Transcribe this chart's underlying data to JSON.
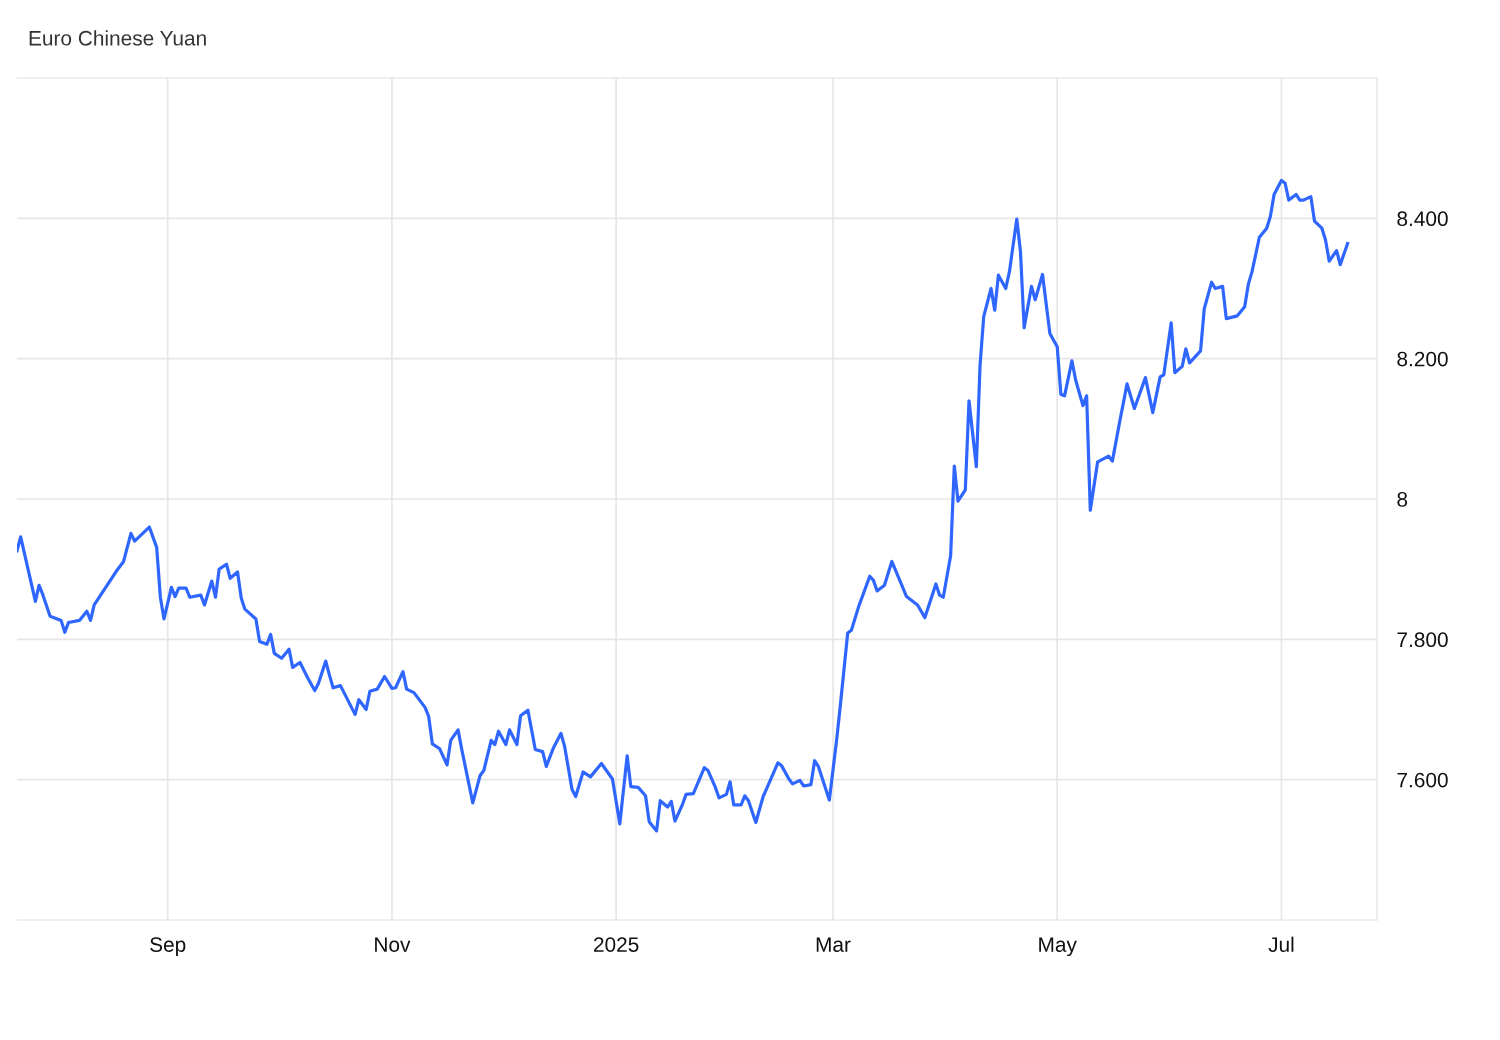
{
  "chart_data": {
    "type": "line",
    "title": "Euro Chinese Yuan",
    "x": [
      "2024-07-22",
      "2024-07-23",
      "2024-07-27",
      "2024-07-28",
      "2024-07-29",
      "2024-07-31",
      "2024-08-03",
      "2024-08-04",
      "2024-08-05",
      "2024-08-08",
      "2024-08-10",
      "2024-08-11",
      "2024-08-12",
      "2024-08-18",
      "2024-08-20",
      "2024-08-22",
      "2024-08-23",
      "2024-08-25",
      "2024-08-27",
      "2024-08-29",
      "2024-08-30",
      "2024-08-31",
      "2024-09-02",
      "2024-09-03",
      "2024-09-04",
      "2024-09-06",
      "2024-09-07",
      "2024-09-10",
      "2024-09-11",
      "2024-09-13",
      "2024-09-14",
      "2024-09-15",
      "2024-09-17",
      "2024-09-18",
      "2024-09-20",
      "2024-09-21",
      "2024-09-22",
      "2024-09-25",
      "2024-09-26",
      "2024-09-28",
      "2024-09-29",
      "2024-09-30",
      "2024-10-02",
      "2024-10-04",
      "2024-10-05",
      "2024-10-07",
      "2024-10-09",
      "2024-10-11",
      "2024-10-12",
      "2024-10-14",
      "2024-10-15",
      "2024-10-16",
      "2024-10-18",
      "2024-10-21",
      "2024-10-22",
      "2024-10-23",
      "2024-10-25",
      "2024-10-26",
      "2024-10-28",
      "2024-10-30",
      "2024-11-01",
      "2024-11-02",
      "2024-11-04",
      "2024-11-05",
      "2024-11-07",
      "2024-11-10",
      "2024-11-11",
      "2024-11-12",
      "2024-11-14",
      "2024-11-16",
      "2024-11-17",
      "2024-11-19",
      "2024-11-20",
      "2024-11-23",
      "2024-11-25",
      "2024-11-26",
      "2024-11-28",
      "2024-11-29",
      "2024-11-30",
      "2024-12-02",
      "2024-12-03",
      "2024-12-05",
      "2024-12-06",
      "2024-12-08",
      "2024-12-10",
      "2024-12-12",
      "2024-12-13",
      "2024-12-15",
      "2024-12-17",
      "2024-12-18",
      "2024-12-20",
      "2024-12-21",
      "2024-12-23",
      "2024-12-25",
      "2024-12-28",
      "2024-12-31",
      "2025-01-02",
      "2025-01-04",
      "2025-01-05",
      "2025-01-07",
      "2025-01-09",
      "2025-01-10",
      "2025-01-12",
      "2025-01-13",
      "2025-01-15",
      "2025-01-16",
      "2025-01-17",
      "2025-01-19",
      "2025-01-20",
      "2025-01-22",
      "2025-01-25",
      "2025-01-26",
      "2025-01-28",
      "2025-01-29",
      "2025-01-31",
      "2025-02-01",
      "2025-02-02",
      "2025-02-04",
      "2025-02-05",
      "2025-02-06",
      "2025-02-08",
      "2025-02-10",
      "2025-02-14",
      "2025-02-15",
      "2025-02-17",
      "2025-02-18",
      "2025-02-20",
      "2025-02-21",
      "2025-02-23",
      "2025-02-24",
      "2025-02-25",
      "2025-02-28",
      "2025-03-02",
      "2025-03-03",
      "2025-03-05",
      "2025-03-06",
      "2025-03-08",
      "2025-03-11",
      "2025-03-12",
      "2025-03-13",
      "2025-03-15",
      "2025-03-17",
      "2025-03-19",
      "2025-03-21",
      "2025-03-24",
      "2025-03-26",
      "2025-03-29",
      "2025-03-30",
      "2025-03-31",
      "2025-04-02",
      "2025-04-03",
      "2025-04-04",
      "2025-04-06",
      "2025-04-07",
      "2025-04-09",
      "2025-04-10",
      "2025-04-11",
      "2025-04-13",
      "2025-04-14",
      "2025-04-15",
      "2025-04-17",
      "2025-04-18",
      "2025-04-20",
      "2025-04-21",
      "2025-04-22",
      "2025-04-24",
      "2025-04-25",
      "2025-04-27",
      "2025-04-29",
      "2025-05-01",
      "2025-05-02",
      "2025-05-03",
      "2025-05-05",
      "2025-05-06",
      "2025-05-08",
      "2025-05-09",
      "2025-05-10",
      "2025-05-12",
      "2025-05-15",
      "2025-05-16",
      "2025-05-18",
      "2025-05-20",
      "2025-05-22",
      "2025-05-25",
      "2025-05-27",
      "2025-05-29",
      "2025-05-30",
      "2025-06-01",
      "2025-06-02",
      "2025-06-04",
      "2025-06-05",
      "2025-06-06",
      "2025-06-09",
      "2025-06-10",
      "2025-06-12",
      "2025-06-13",
      "2025-06-15",
      "2025-06-16",
      "2025-06-19",
      "2025-06-21",
      "2025-06-22",
      "2025-06-23",
      "2025-06-25",
      "2025-06-27",
      "2025-06-28",
      "2025-06-29",
      "2025-07-01",
      "2025-07-02",
      "2025-07-03",
      "2025-07-05",
      "2025-07-06",
      "2025-07-07",
      "2025-07-09",
      "2025-07-10",
      "2025-07-12",
      "2025-07-13",
      "2025-07-14",
      "2025-07-16",
      "2025-07-17",
      "2025-07-19"
    ],
    "series": [
      {
        "color": "#2f66ff",
        "values": [
          7.926,
          7.946,
          7.854,
          7.877,
          7.864,
          7.833,
          7.827,
          7.81,
          7.824,
          7.827,
          7.84,
          7.827,
          7.849,
          7.897,
          7.911,
          7.951,
          7.94,
          7.95,
          7.96,
          7.931,
          7.86,
          7.829,
          7.874,
          7.861,
          7.873,
          7.873,
          7.86,
          7.863,
          7.849,
          7.883,
          7.86,
          7.9,
          7.907,
          7.887,
          7.896,
          7.859,
          7.843,
          7.829,
          7.797,
          7.793,
          7.807,
          7.78,
          7.773,
          7.786,
          7.76,
          7.767,
          7.746,
          7.727,
          7.737,
          7.769,
          7.749,
          7.731,
          7.734,
          7.703,
          7.693,
          7.714,
          7.7,
          7.726,
          7.729,
          7.747,
          7.73,
          7.731,
          7.754,
          7.729,
          7.724,
          7.703,
          7.69,
          7.651,
          7.644,
          7.621,
          7.656,
          7.671,
          7.643,
          7.567,
          7.606,
          7.613,
          7.656,
          7.65,
          7.669,
          7.65,
          7.671,
          7.65,
          7.691,
          7.699,
          7.643,
          7.64,
          7.619,
          7.646,
          7.666,
          7.647,
          7.586,
          7.576,
          7.611,
          7.604,
          7.623,
          7.601,
          7.537,
          7.634,
          7.59,
          7.589,
          7.577,
          7.54,
          7.527,
          7.57,
          7.561,
          7.569,
          7.541,
          7.564,
          7.579,
          7.58,
          7.617,
          7.613,
          7.589,
          7.574,
          7.579,
          7.597,
          7.564,
          7.564,
          7.577,
          7.57,
          7.539,
          7.576,
          7.624,
          7.62,
          7.601,
          7.594,
          7.599,
          7.591,
          7.593,
          7.627,
          7.619,
          7.571,
          7.657,
          7.706,
          7.809,
          7.813,
          7.847,
          7.89,
          7.884,
          7.869,
          7.877,
          7.911,
          7.886,
          7.861,
          7.849,
          7.831,
          7.879,
          7.863,
          7.86,
          7.919,
          8.047,
          7.997,
          8.013,
          8.14,
          8.046,
          8.19,
          8.26,
          8.3,
          8.269,
          8.319,
          8.3,
          8.324,
          8.399,
          8.353,
          8.244,
          8.303,
          8.284,
          8.32,
          8.236,
          8.217,
          8.149,
          8.147,
          8.197,
          8.17,
          8.133,
          8.147,
          7.984,
          8.053,
          8.061,
          8.054,
          8.11,
          8.164,
          8.129,
          8.173,
          8.123,
          8.174,
          8.177,
          8.251,
          8.18,
          8.189,
          8.214,
          8.194,
          8.211,
          8.271,
          8.309,
          8.3,
          8.303,
          8.257,
          8.261,
          8.274,
          8.306,
          8.324,
          8.373,
          8.386,
          8.403,
          8.434,
          8.454,
          8.45,
          8.426,
          8.434,
          8.426,
          8.426,
          8.431,
          8.396,
          8.386,
          8.369,
          8.339,
          8.354,
          8.334,
          8.364
        ]
      }
    ],
    "xlim": [
      "2024-07-22",
      "2025-07-27"
    ],
    "ylim": [
      7.4,
      8.6
    ],
    "xticks": [
      {
        "value": "2024-09-01",
        "label": "Sep"
      },
      {
        "value": "2024-11-01",
        "label": "Nov"
      },
      {
        "value": "2025-01-01",
        "label": "2025"
      },
      {
        "value": "2025-03-01",
        "label": "Mar"
      },
      {
        "value": "2025-05-01",
        "label": "May"
      },
      {
        "value": "2025-07-01",
        "label": "Jul"
      }
    ],
    "yticks": [
      {
        "value": 7.6,
        "label": "7.600"
      },
      {
        "value": 7.8,
        "label": "7.800"
      },
      8,
      {
        "value": 8.2,
        "label": "8.200"
      },
      {
        "value": 8.4,
        "label": "8.400"
      }
    ],
    "grid": true
  }
}
